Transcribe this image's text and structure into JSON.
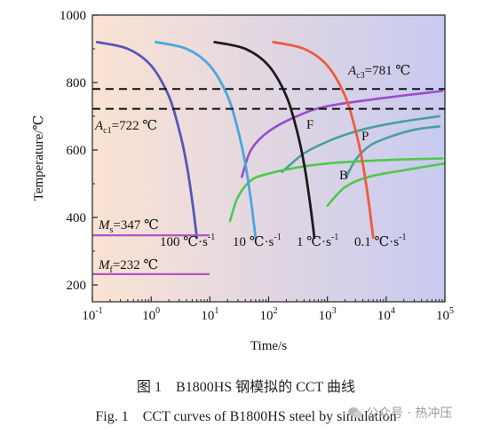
{
  "chart_data": {
    "type": "line",
    "xscale": "log",
    "xlim": [
      0.1,
      100000
    ],
    "ylim": [
      150,
      1000
    ],
    "xlabel": "Time/s",
    "ylabel": "Temperature/℃",
    "xticks": [
      "10-1",
      "100",
      "101",
      "102",
      "103",
      "104",
      "105"
    ],
    "yticks": [
      200,
      400,
      600,
      800,
      1000
    ],
    "background": {
      "left": "#fbe3d3",
      "right": "#c7caf0"
    },
    "cooling_curves": [
      {
        "label": "100 ℃·s-1",
        "color": "#5a55b8",
        "x": [
          0.12,
          0.4,
          1.0,
          2.0,
          3.0,
          4.0,
          5.0,
          6.0
        ],
        "y": [
          920,
          900,
          850,
          760,
          660,
          560,
          450,
          340
        ]
      },
      {
        "label": "10 ℃·s-1",
        "color": "#4aa6e0",
        "x": [
          1.2,
          4.0,
          10,
          20,
          30,
          40,
          50,
          60
        ],
        "y": [
          920,
          900,
          850,
          760,
          660,
          560,
          450,
          340
        ]
      },
      {
        "label": "1 ℃·s-1",
        "color": "#1a1a1a",
        "x": [
          12,
          40,
          100,
          200,
          300,
          400,
          500,
          600
        ],
        "y": [
          920,
          900,
          850,
          760,
          660,
          560,
          450,
          340
        ]
      },
      {
        "label": "0.1 ℃·s-1",
        "color": "#ef5a3c",
        "x": [
          120,
          400,
          1000,
          2000,
          3000,
          4000,
          5000,
          6000
        ],
        "y": [
          920,
          900,
          850,
          760,
          660,
          560,
          450,
          340
        ]
      }
    ],
    "transformation_lines": [
      {
        "label": "F",
        "color": "#9b4ccd",
        "x": [
          35,
          50,
          100,
          300,
          1000,
          10000,
          90000
        ],
        "y": [
          520,
          600,
          655,
          700,
          730,
          755,
          775
        ]
      },
      {
        "label": "P",
        "color": "#4a9e9c",
        "x": [
          170,
          400,
          1000,
          2000,
          5000,
          20000,
          80000
        ],
        "y": [
          535,
          590,
          625,
          645,
          665,
          685,
          700
        ]
      },
      {
        "label": "",
        "color": "#4a9e9c",
        "x": [
          2100,
          3000,
          5000,
          10000,
          30000,
          80000
        ],
        "y": [
          520,
          570,
          610,
          635,
          660,
          670
        ]
      },
      {
        "label": "B",
        "color": "#4ec94a",
        "x": [
          22,
          30,
          50,
          100,
          300,
          1000,
          5000,
          20000,
          90000
        ],
        "y": [
          390,
          460,
          510,
          530,
          548,
          560,
          568,
          572,
          575
        ]
      },
      {
        "label": "",
        "color": "#4ec94a",
        "x": [
          1000,
          2000,
          5000,
          20000,
          100000
        ],
        "y": [
          435,
          490,
          520,
          540,
          560
        ]
      }
    ],
    "reference_lines": [
      {
        "label": "Ac3=781 ℃",
        "y": 781,
        "style": "dashed",
        "color": "#111111"
      },
      {
        "label": "Ac1=722 ℃",
        "y": 722,
        "style": "dashed",
        "color": "#111111"
      },
      {
        "label": "Ms=347 ℃",
        "y": 347,
        "style": "solid",
        "color": "#b055c8"
      },
      {
        "label": "Mf=232 ℃",
        "y": 232,
        "style": "solid",
        "color": "#b055c8"
      }
    ],
    "region_labels": [
      "F",
      "P",
      "B"
    ]
  },
  "caption": {
    "cn": "图 1　B1800HS 钢模拟的 CCT 曲线",
    "en": "Fig. 1　CCT curves of B1800HS steel by simulation"
  },
  "watermark": {
    "text": "公众号 · 热冲压"
  }
}
